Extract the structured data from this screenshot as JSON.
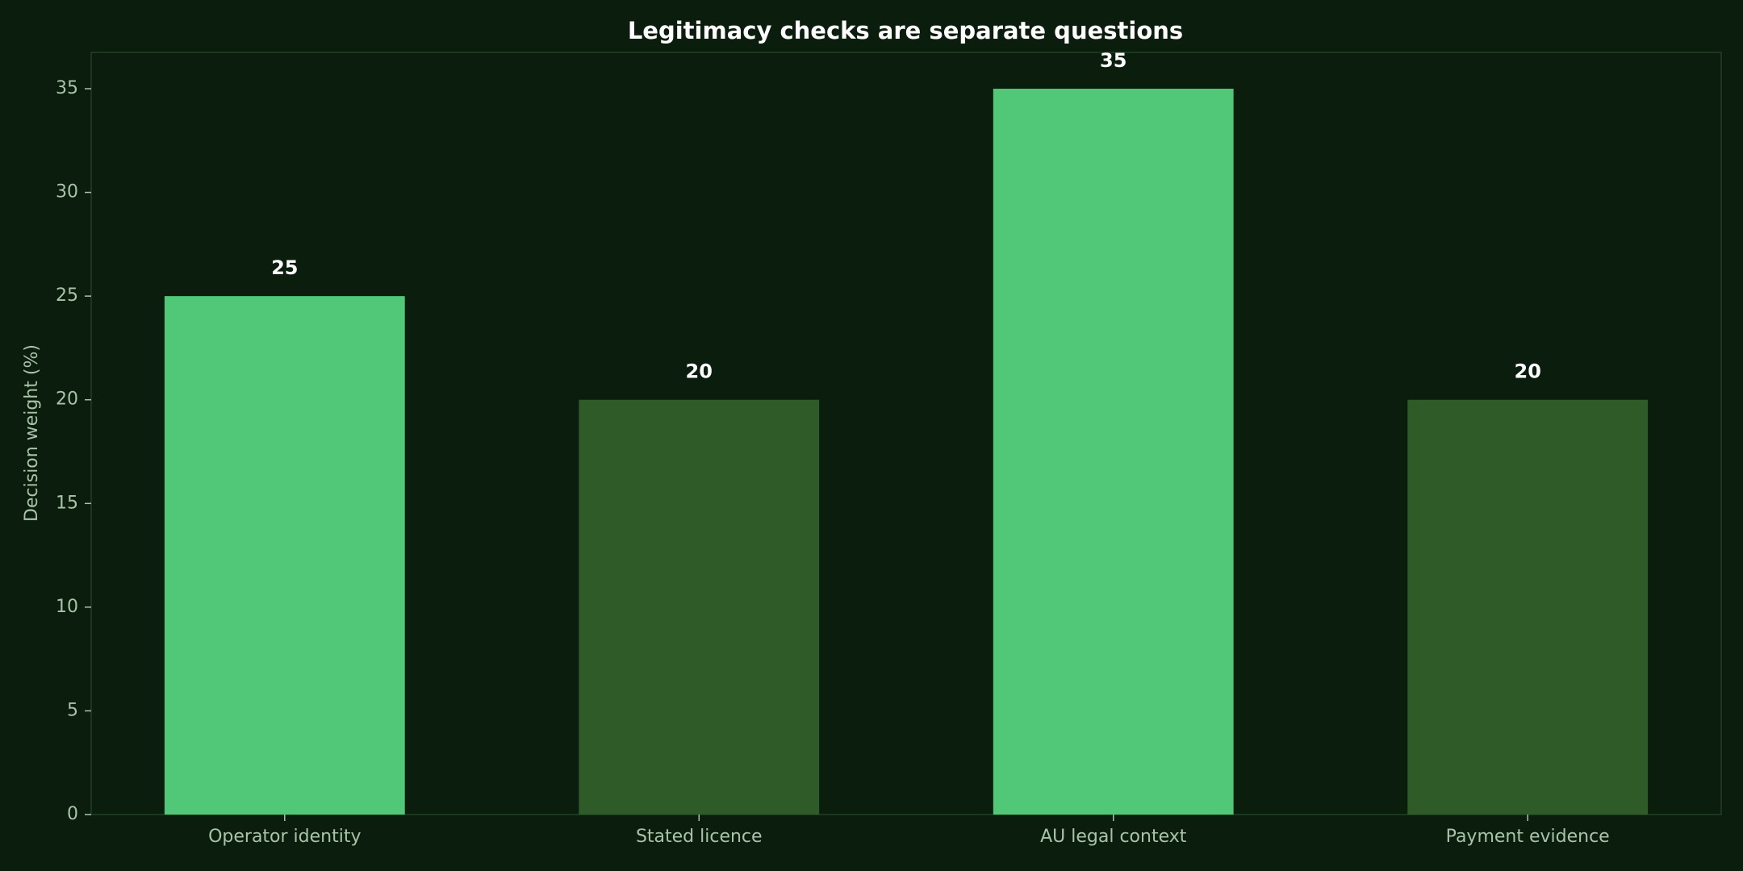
{
  "chart_data": {
    "type": "bar",
    "title": "Legitimacy checks are separate questions",
    "y_label": "Decision weight (%)",
    "categories": [
      "Operator identity",
      "Stated licence",
      "AU legal context",
      "Payment evidence"
    ],
    "values": [
      25,
      20,
      35,
      20
    ],
    "colors": [
      "#50c878",
      "#2e5b28",
      "#50c878",
      "#2e5b28"
    ],
    "ylim": [
      0,
      36.75
    ],
    "yticks": [
      0,
      5,
      10,
      15,
      20,
      25,
      30,
      35
    ],
    "grid": false
  }
}
